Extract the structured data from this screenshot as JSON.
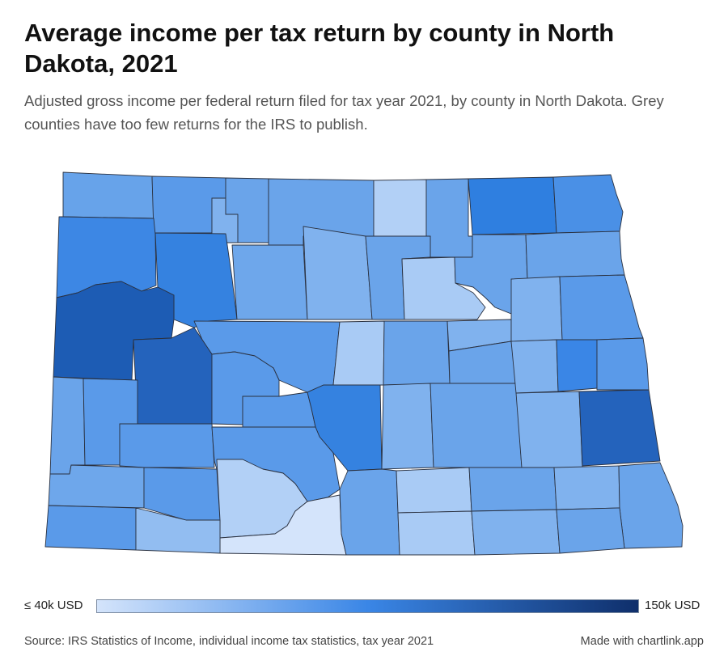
{
  "header": {
    "title": "Average income per tax return by county in North Dakota, 2021",
    "subtitle": "Adjusted gross income per federal return filed for tax year 2021, by county in North Dakota. Grey counties have too few returns for the IRS to publish."
  },
  "legend": {
    "min_label": "≤ 40k USD",
    "max_label": "150k USD",
    "color_low": "#d4e4fb",
    "color_mid": "#3a86e6",
    "color_high": "#0f2f6b"
  },
  "footer": {
    "source": "Source: IRS Statistics of Income, individual income tax statistics, tax year 2021",
    "credit": "Made with chartlink.app"
  },
  "colors": {
    "border": "#2a3140"
  }
}
